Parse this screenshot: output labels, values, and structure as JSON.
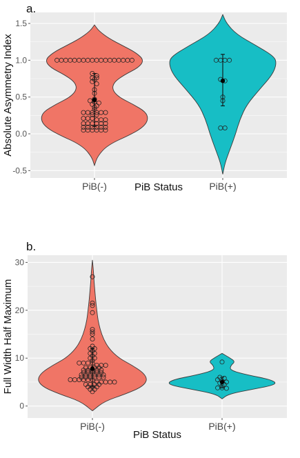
{
  "colors": {
    "neg": "#f07566",
    "pos": "#17bec5",
    "panel_bg": "#ebebeb",
    "grid": "#ffffff"
  },
  "chart_data": [
    {
      "panel_label": "a.",
      "type": "violin",
      "xlabel": "PiB Status",
      "ylabel": "Absolute Asymmetry Index",
      "ylim": [
        -0.6,
        1.65
      ],
      "yticks": [
        "-0.5",
        "0.0",
        "0.5",
        "1.0",
        "1.5"
      ],
      "ytick_values": [
        -0.5,
        0.0,
        0.5,
        1.0,
        1.5
      ],
      "categories": [
        "PiB(-)",
        "PiB(+)"
      ],
      "grid": true,
      "groups": [
        {
          "category": "PiB(-)",
          "color": "neg",
          "range": [
            -0.43,
            1.48
          ],
          "density": [
            [
              -0.43,
              0.0
            ],
            [
              -0.3,
              0.06
            ],
            [
              -0.15,
              0.25
            ],
            [
              0.0,
              0.7
            ],
            [
              0.1,
              0.92
            ],
            [
              0.2,
              1.0
            ],
            [
              0.3,
              0.95
            ],
            [
              0.4,
              0.72
            ],
            [
              0.5,
              0.45
            ],
            [
              0.6,
              0.33
            ],
            [
              0.7,
              0.36
            ],
            [
              0.8,
              0.55
            ],
            [
              0.9,
              0.82
            ],
            [
              1.0,
              0.92
            ],
            [
              1.1,
              0.78
            ],
            [
              1.2,
              0.52
            ],
            [
              1.3,
              0.26
            ],
            [
              1.4,
              0.08
            ],
            [
              1.48,
              0.0
            ]
          ],
          "points": [
            1.0,
            1.0,
            1.0,
            1.0,
            1.0,
            1.0,
            1.0,
            1.0,
            1.0,
            1.0,
            1.0,
            1.0,
            1.0,
            1.0,
            1.0,
            1.0,
            1.0,
            1.0,
            0.82,
            0.79,
            0.76,
            0.76,
            0.74,
            0.71,
            0.68,
            0.6,
            0.55,
            0.47,
            0.45,
            0.43,
            0.42,
            0.4,
            0.38,
            0.36,
            0.33,
            0.29,
            0.29,
            0.29,
            0.29,
            0.29,
            0.29,
            0.26,
            0.26,
            0.21,
            0.21,
            0.21,
            0.19,
            0.19,
            0.19,
            0.14,
            0.14,
            0.14,
            0.14,
            0.14,
            0.14,
            0.09,
            0.09,
            0.09,
            0.09,
            0.09,
            0.09,
            0.05,
            0.05,
            0.05,
            0.05,
            0.05,
            0.05
          ],
          "mean": 0.46,
          "error": [
            0.1,
            0.82
          ]
        },
        {
          "category": "PiB(+)",
          "color": "pos",
          "range": [
            -0.55,
            1.62
          ],
          "density": [
            [
              -0.55,
              0.0
            ],
            [
              -0.4,
              0.04
            ],
            [
              -0.2,
              0.14
            ],
            [
              0.0,
              0.24
            ],
            [
              0.2,
              0.32
            ],
            [
              0.4,
              0.45
            ],
            [
              0.6,
              0.68
            ],
            [
              0.8,
              0.92
            ],
            [
              0.95,
              1.0
            ],
            [
              1.05,
              0.96
            ],
            [
              1.2,
              0.62
            ],
            [
              1.35,
              0.26
            ],
            [
              1.5,
              0.07
            ],
            [
              1.62,
              0.0
            ]
          ],
          "points": [
            1.0,
            1.0,
            1.0,
            1.0,
            0.74,
            0.72,
            0.5,
            0.45,
            0.08,
            0.08
          ],
          "mean": 0.72,
          "error": [
            0.38,
            1.08
          ]
        }
      ]
    },
    {
      "panel_label": "b.",
      "type": "violin",
      "xlabel": "PiB Status",
      "ylabel": "Full Width Half Maximum",
      "ylim": [
        -2.5,
        31.5
      ],
      "yticks": [
        "0",
        "10",
        "20",
        "30"
      ],
      "ytick_values": [
        0,
        10,
        20,
        30
      ],
      "categories": [
        "PiB(-)",
        "PiB(+)"
      ],
      "grid": true,
      "groups": [
        {
          "category": "PiB(-)",
          "color": "neg",
          "range": [
            -1.0,
            30.5
          ],
          "density": [
            [
              -1.0,
              0.0
            ],
            [
              1.0,
              0.22
            ],
            [
              2.5,
              0.6
            ],
            [
              4.0,
              0.9
            ],
            [
              5.5,
              1.0
            ],
            [
              7.0,
              0.92
            ],
            [
              8.5,
              0.72
            ],
            [
              10.0,
              0.48
            ],
            [
              12.0,
              0.3
            ],
            [
              14.0,
              0.2
            ],
            [
              16.0,
              0.14
            ],
            [
              18.0,
              0.1
            ],
            [
              20.0,
              0.08
            ],
            [
              22.0,
              0.06
            ],
            [
              24.0,
              0.045
            ],
            [
              26.0,
              0.03
            ],
            [
              28.0,
              0.02
            ],
            [
              30.5,
              0.0
            ]
          ],
          "points": [
            27.0,
            21.5,
            21.0,
            19.5,
            16.0,
            15.5,
            15.0,
            14.0,
            12.5,
            12.0,
            12.0,
            11.5,
            11.0,
            11.0,
            10.5,
            10.0,
            10.0,
            9.5,
            9.0,
            9.0,
            9.0,
            9.0,
            8.5,
            8.5,
            8.5,
            8.0,
            8.0,
            8.0,
            8.0,
            7.5,
            7.5,
            7.5,
            7.5,
            7.5,
            7.0,
            7.0,
            7.0,
            7.0,
            7.0,
            6.5,
            6.5,
            6.5,
            6.5,
            6.5,
            6.5,
            6.0,
            6.0,
            6.0,
            6.0,
            6.0,
            6.0,
            5.5,
            5.5,
            5.5,
            5.5,
            5.5,
            5.5,
            5.0,
            5.0,
            5.0,
            5.0,
            5.0,
            4.5,
            4.5,
            4.5,
            4.5,
            4.0,
            4.0,
            4.0,
            3.5,
            3.5,
            3.0
          ],
          "mean": 7.8,
          "error": [
            4.0,
            12.0
          ]
        },
        {
          "category": "PiB(+)",
          "color": "pos",
          "range": [
            1.5,
            11.0
          ],
          "density": [
            [
              1.5,
              0.0
            ],
            [
              2.5,
              0.12
            ],
            [
              3.5,
              0.55
            ],
            [
              4.5,
              1.0
            ],
            [
              5.5,
              0.9
            ],
            [
              6.5,
              0.45
            ],
            [
              7.5,
              0.14
            ],
            [
              8.5,
              0.16
            ],
            [
              9.3,
              0.24
            ],
            [
              10.2,
              0.12
            ],
            [
              11.0,
              0.0
            ]
          ],
          "points": [
            9.2,
            6.0,
            5.8,
            5.5,
            5.3,
            5.0,
            4.8,
            4.5,
            4.2,
            3.8,
            3.8,
            3.7
          ],
          "mean": 5.0,
          "error": [
            3.8,
            6.0
          ]
        }
      ]
    }
  ]
}
